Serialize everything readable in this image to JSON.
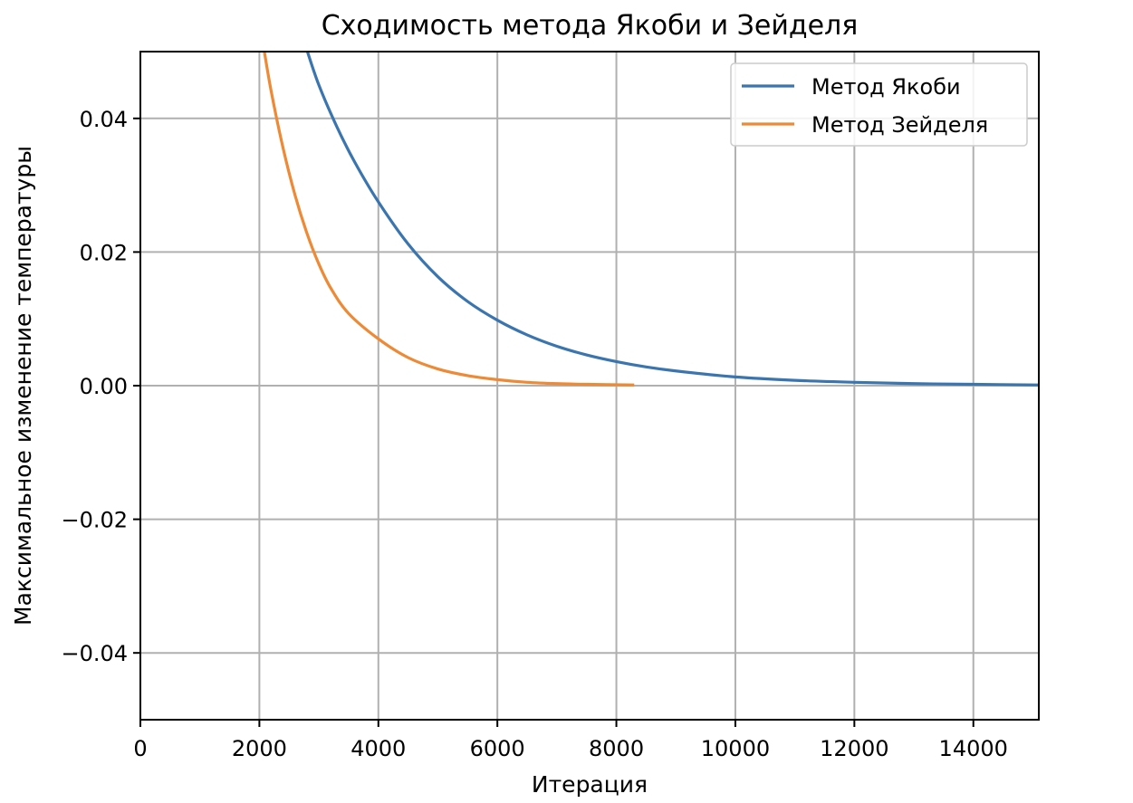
{
  "chart_data": {
    "type": "line",
    "title": "Сходимость метода Якоби и Зейделя",
    "xlabel": "Итерация",
    "ylabel": "Максимальное изменение температуры",
    "xlim": [
      0,
      15100
    ],
    "ylim": [
      -0.05,
      0.05
    ],
    "x_ticks": [
      0,
      2000,
      4000,
      6000,
      8000,
      10000,
      12000,
      14000
    ],
    "y_ticks": [
      -0.04,
      -0.02,
      0.0,
      0.02,
      0.04
    ],
    "x_tick_labels": [
      "0",
      "2000",
      "4000",
      "6000",
      "8000",
      "10000",
      "12000",
      "14000"
    ],
    "y_tick_labels": [
      "−0.04",
      "−0.02",
      "0.00",
      "0.02",
      "0.04"
    ],
    "grid": true,
    "legend_position": "top-right",
    "series": [
      {
        "name": "Метод Якоби",
        "color": "#3a75b0",
        "points": [
          [
            2800,
            0.0502
          ],
          [
            3000,
            0.045
          ],
          [
            3300,
            0.0388
          ],
          [
            3600,
            0.0335
          ],
          [
            4000,
            0.0275
          ],
          [
            4500,
            0.0212
          ],
          [
            5000,
            0.0163
          ],
          [
            5500,
            0.0126
          ],
          [
            6000,
            0.0098
          ],
          [
            6500,
            0.0076
          ],
          [
            7000,
            0.0059
          ],
          [
            7500,
            0.0046
          ],
          [
            8000,
            0.0036
          ],
          [
            8500,
            0.0028
          ],
          [
            9000,
            0.0022
          ],
          [
            10000,
            0.0013
          ],
          [
            11000,
            0.0008
          ],
          [
            12000,
            0.0005
          ],
          [
            13000,
            0.0003
          ],
          [
            14000,
            0.0002
          ],
          [
            15100,
            0.0001
          ]
        ]
      },
      {
        "name": "Метод Зейделя",
        "color": "#ee8a35",
        "points": [
          [
            2080,
            0.0502
          ],
          [
            2200,
            0.044
          ],
          [
            2400,
            0.0355
          ],
          [
            2600,
            0.0285
          ],
          [
            2800,
            0.0228
          ],
          [
            3000,
            0.0182
          ],
          [
            3200,
            0.0146
          ],
          [
            3500,
            0.0108
          ],
          [
            4000,
            0.007
          ],
          [
            4500,
            0.0042
          ],
          [
            5000,
            0.0025
          ],
          [
            5500,
            0.0015
          ],
          [
            6000,
            0.0009
          ],
          [
            6500,
            0.0005
          ],
          [
            7000,
            0.0003
          ],
          [
            7500,
            0.0002
          ],
          [
            8300,
            0.0001
          ]
        ]
      }
    ]
  }
}
